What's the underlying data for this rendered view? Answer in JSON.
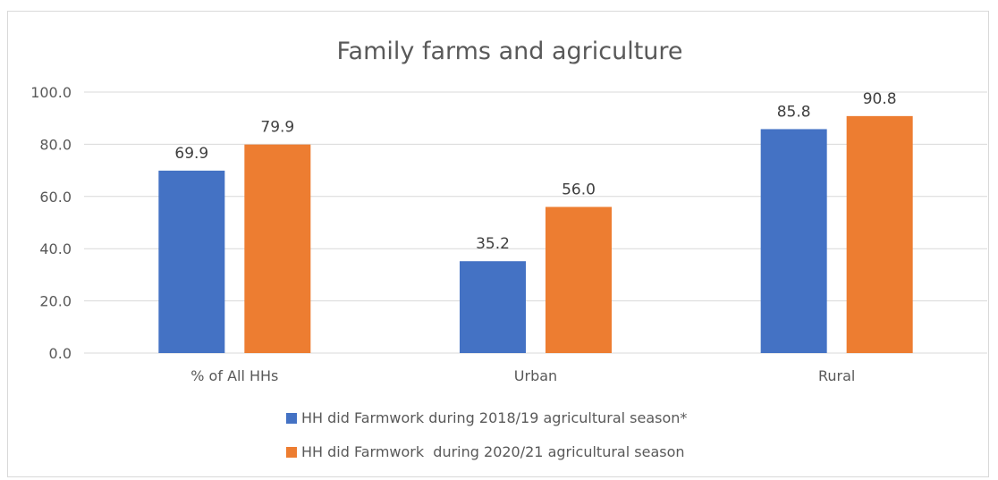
{
  "chart_data": {
    "type": "bar",
    "title": "Family farms and agriculture",
    "xlabel": "",
    "ylabel": "",
    "categories": [
      "% of All HHs",
      "Urban",
      "Rural"
    ],
    "series": [
      {
        "name": "HH did Farmwork during 2018/19 agricultural season*",
        "values": [
          69.9,
          35.2,
          85.8
        ],
        "labels": [
          "69.9",
          "35.2",
          "85.8"
        ],
        "color": "#4472c4"
      },
      {
        "name": "HH did Farmwork  during 2020/21 agricultural season",
        "values": [
          79.9,
          56.0,
          90.8
        ],
        "labels": [
          "79.9",
          "56.0",
          "90.8"
        ],
        "color": "#ed7d31"
      }
    ],
    "ylim": [
      0,
      100
    ],
    "yticks": [
      "0.0",
      "20.0",
      "40.0",
      "60.0",
      "80.0",
      "100.0"
    ],
    "grid": true,
    "legend_position": "bottom",
    "gridline_color": "#d9d9d9"
  }
}
